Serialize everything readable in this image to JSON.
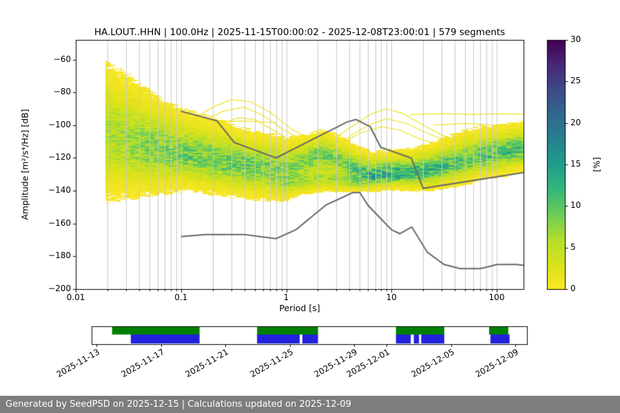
{
  "footer": {
    "text": "Generated by SeedPSD on 2025-12-15 | Calculations updated on 2025-12-09"
  },
  "chart_data": {
    "type": "heatmap",
    "title": "HA.LOUT..HHN | 100.0Hz | 2025-11-15T00:00:02 - 2025-12-08T23:00:01 | 579 segments",
    "xlabel": "Period [s]",
    "ylabel": "Amplitude [m²/s⁴/Hz] [dB]",
    "xscale": "log",
    "xlim": [
      0.01,
      180
    ],
    "ylim": [
      -200,
      -48
    ],
    "grid": "vertical-log-major-and-minor",
    "xticks": [
      {
        "label": "0.01",
        "v": 0.01
      },
      {
        "label": "0.1",
        "v": 0.1
      },
      {
        "label": "1",
        "v": 1
      },
      {
        "label": "10",
        "v": 10
      },
      {
        "label": "100",
        "v": 100
      }
    ],
    "yticks": [
      {
        "label": "−200",
        "v": -200
      },
      {
        "label": "−180",
        "v": -180
      },
      {
        "label": "−160",
        "v": -160
      },
      {
        "label": "−140",
        "v": -140
      },
      {
        "label": "−120",
        "v": -120
      },
      {
        "label": "−100",
        "v": -100
      },
      {
        "label": "−80",
        "v": -80
      },
      {
        "label": "−60",
        "v": -60
      }
    ],
    "colorbar": {
      "label": "[%]",
      "min": 0,
      "max": 30,
      "colormap": "viridis_r",
      "ticks": [
        {
          "label": "0",
          "v": 0
        },
        {
          "label": "5",
          "v": 5
        },
        {
          "label": "10",
          "v": 10
        },
        {
          "label": "15",
          "v": 15
        },
        {
          "label": "20",
          "v": 20
        },
        {
          "label": "25",
          "v": 25
        },
        {
          "label": "30",
          "v": 30
        }
      ],
      "anchors": [
        [
          0.0,
          68,
          1,
          84
        ],
        [
          0.1,
          72,
          40,
          120
        ],
        [
          0.2,
          62,
          74,
          137
        ],
        [
          0.3,
          49,
          104,
          142
        ],
        [
          0.4,
          38,
          130,
          142
        ],
        [
          0.5,
          31,
          158,
          137
        ],
        [
          0.6,
          53,
          183,
          121
        ],
        [
          0.7,
          109,
          205,
          89
        ],
        [
          0.8,
          180,
          222,
          44
        ],
        [
          0.9,
          216,
          226,
          25
        ],
        [
          1.0,
          253,
          231,
          37
        ]
      ]
    },
    "ppsd_cloud": [
      {
        "p": 0.019,
        "c": -105,
        "su": 26,
        "sd": 24,
        "pk": 6,
        "m2": -136,
        "s2": 4,
        "k2": 0
      },
      {
        "p": 0.03,
        "c": -110,
        "su": 24,
        "sd": 20,
        "pk": 7,
        "m2": -136,
        "s2": 4,
        "k2": 0
      },
      {
        "p": 0.05,
        "c": -114,
        "su": 20,
        "sd": 16,
        "pk": 8,
        "m2": -136,
        "s2": 4,
        "k2": 0
      },
      {
        "p": 0.08,
        "c": -116,
        "su": 16,
        "sd": 14,
        "pk": 9,
        "m2": -136,
        "s2": 4,
        "k2": 0
      },
      {
        "p": 0.12,
        "c": -118,
        "su": 15,
        "sd": 12,
        "pk": 9,
        "m2": -136,
        "s2": 4,
        "k2": 0
      },
      {
        "p": 0.2,
        "c": -121,
        "su": 14,
        "sd": 12,
        "pk": 9,
        "m2": -136,
        "s2": 4,
        "k2": 0
      },
      {
        "p": 0.35,
        "c": -124,
        "su": 13,
        "sd": 11,
        "pk": 9,
        "m2": -136,
        "s2": 4,
        "k2": 0
      },
      {
        "p": 0.6,
        "c": -126,
        "su": 12,
        "sd": 11,
        "pk": 9,
        "m2": -136,
        "s2": 4,
        "k2": 0
      },
      {
        "p": 1.0,
        "c": -127,
        "su": 11,
        "sd": 11,
        "pk": 8,
        "m2": -136,
        "s2": 4,
        "k2": 3
      },
      {
        "p": 1.6,
        "c": -121,
        "su": 9,
        "sd": 9,
        "pk": 8,
        "m2": -134,
        "s2": 5,
        "k2": 5
      },
      {
        "p": 2.3,
        "c": -117,
        "su": 8,
        "sd": 9,
        "pk": 9,
        "m2": -132,
        "s2": 5,
        "k2": 5
      },
      {
        "p": 3.2,
        "c": -122,
        "su": 9,
        "sd": 8,
        "pk": 8,
        "m2": -134,
        "s2": 4,
        "k2": 6
      },
      {
        "p": 4.5,
        "c": -128,
        "su": 9,
        "sd": 6,
        "pk": 10,
        "m2": -135,
        "s2": 3,
        "k2": 6
      },
      {
        "p": 6.5,
        "c": -131,
        "su": 8,
        "sd": 5,
        "pk": 13,
        "m2": -135,
        "s2": 3,
        "k2": 0
      },
      {
        "p": 10,
        "c": -130,
        "su": 8,
        "sd": 5,
        "pk": 13,
        "m2": -135,
        "s2": 3,
        "k2": 0
      },
      {
        "p": 15,
        "c": -129,
        "su": 8,
        "sd": 6,
        "pk": 12,
        "m2": -135,
        "s2": 3,
        "k2": 0
      },
      {
        "p": 25,
        "c": -127,
        "su": 9,
        "sd": 7,
        "pk": 11,
        "m2": -135,
        "s2": 3,
        "k2": 0
      },
      {
        "p": 40,
        "c": -123,
        "su": 10,
        "sd": 8,
        "pk": 10,
        "m2": -135,
        "s2": 3,
        "k2": 0
      },
      {
        "p": 70,
        "c": -119,
        "su": 10,
        "sd": 8,
        "pk": 10,
        "m2": -135,
        "s2": 3,
        "k2": 0
      },
      {
        "p": 120,
        "c": -116,
        "su": 9,
        "sd": 8,
        "pk": 11,
        "m2": -135,
        "s2": 3,
        "k2": 0
      },
      {
        "p": 180,
        "c": -114,
        "su": 9,
        "sd": 8,
        "pk": 11,
        "m2": -135,
        "s2": 3,
        "k2": 0
      }
    ],
    "extra_curves": [
      {
        "density": 1.2,
        "pts": [
          [
            0.019,
            -72
          ],
          [
            0.035,
            -80
          ],
          [
            0.06,
            -88
          ],
          [
            0.1,
            -94
          ],
          [
            0.18,
            -99
          ],
          [
            0.3,
            -103
          ]
        ]
      },
      {
        "density": 1.2,
        "pts": [
          [
            0.019,
            -76
          ],
          [
            0.04,
            -85
          ],
          [
            0.08,
            -92
          ],
          [
            0.15,
            -98
          ],
          [
            0.3,
            -103.5
          ]
        ]
      },
      {
        "density": 1.5,
        "pts": [
          [
            0.02,
            -82
          ],
          [
            0.05,
            -91
          ],
          [
            0.1,
            -98
          ],
          [
            0.2,
            -104
          ],
          [
            0.4,
            -108
          ]
        ]
      },
      {
        "density": 1.2,
        "pts": [
          [
            0.07,
            -108
          ],
          [
            0.12,
            -98
          ],
          [
            0.2,
            -89
          ],
          [
            0.3,
            -84.5
          ],
          [
            0.45,
            -85.5
          ],
          [
            0.7,
            -92
          ],
          [
            1.1,
            -102
          ],
          [
            1.8,
            -110
          ],
          [
            2.6,
            -114
          ]
        ]
      },
      {
        "density": 1.2,
        "pts": [
          [
            0.08,
            -110
          ],
          [
            0.15,
            -99
          ],
          [
            0.25,
            -91.5
          ],
          [
            0.4,
            -89
          ],
          [
            0.6,
            -94
          ],
          [
            0.9,
            -102
          ],
          [
            1.5,
            -110
          ],
          [
            2.2,
            -115
          ]
        ]
      },
      {
        "density": 1.5,
        "pts": [
          [
            0.1,
            -110
          ],
          [
            0.2,
            -101
          ],
          [
            0.35,
            -95.5
          ],
          [
            0.5,
            -96.5
          ],
          [
            0.8,
            -104
          ],
          [
            1.3,
            -112
          ]
        ]
      },
      {
        "density": 1.3,
        "pts": [
          [
            0.1,
            -97
          ],
          [
            0.2,
            -98
          ],
          [
            0.4,
            -97.5
          ],
          [
            0.8,
            -98.5
          ]
        ]
      },
      {
        "density": 1.3,
        "pts": [
          [
            2.2,
            -114
          ],
          [
            3.2,
            -106
          ],
          [
            4.5,
            -99.5
          ],
          [
            6.5,
            -93
          ],
          [
            9,
            -90
          ],
          [
            13,
            -93
          ],
          [
            20,
            -100
          ],
          [
            30,
            -106
          ],
          [
            45,
            -110
          ]
        ]
      },
      {
        "density": 1.3,
        "pts": [
          [
            2.5,
            -116
          ],
          [
            4,
            -107
          ],
          [
            6,
            -100
          ],
          [
            9,
            -96
          ],
          [
            14,
            -99
          ],
          [
            22,
            -105
          ],
          [
            35,
            -110
          ]
        ]
      },
      {
        "density": 1.2,
        "pts": [
          [
            3,
            -113
          ],
          [
            5,
            -105
          ],
          [
            8,
            -101
          ],
          [
            12,
            -103
          ],
          [
            18,
            -108
          ],
          [
            28,
            -112
          ]
        ]
      },
      {
        "density": 1.2,
        "pts": [
          [
            15,
            -93.5
          ],
          [
            30,
            -93
          ],
          [
            60,
            -93.5
          ],
          [
            120,
            -93
          ],
          [
            180,
            -93.5
          ]
        ]
      },
      {
        "density": 1.3,
        "pts": [
          [
            25,
            -100
          ],
          [
            50,
            -99
          ],
          [
            100,
            -100
          ],
          [
            180,
            -99.5
          ]
        ]
      },
      {
        "density": 1.3,
        "pts": [
          [
            40,
            -105
          ],
          [
            80,
            -104
          ],
          [
            150,
            -105
          ],
          [
            180,
            -104.5
          ]
        ]
      },
      {
        "density": 1.4,
        "pts": [
          [
            60,
            -107.5
          ],
          [
            120,
            -106.5
          ],
          [
            180,
            -107
          ]
        ]
      }
    ],
    "noise_models": {
      "color": "#666666",
      "high": [
        [
          0.1,
          -91.5
        ],
        [
          0.22,
          -97.4
        ],
        [
          0.32,
          -110.5
        ],
        [
          0.8,
          -120.0
        ],
        [
          3.8,
          -98.0
        ],
        [
          4.6,
          -96.5
        ],
        [
          6.3,
          -101.0
        ],
        [
          7.9,
          -113.5
        ],
        [
          15.4,
          -120.0
        ],
        [
          20.0,
          -138.5
        ],
        [
          180.0,
          -128.9
        ]
      ],
      "low": [
        [
          0.1,
          -168.0
        ],
        [
          0.17,
          -166.7
        ],
        [
          0.4,
          -166.7
        ],
        [
          0.8,
          -169.2
        ],
        [
          1.24,
          -163.7
        ],
        [
          2.4,
          -148.6
        ],
        [
          4.3,
          -141.1
        ],
        [
          5.0,
          -141.1
        ],
        [
          6.0,
          -149.0
        ],
        [
          10.0,
          -163.8
        ],
        [
          12.0,
          -166.2
        ],
        [
          15.6,
          -162.1
        ],
        [
          21.9,
          -177.5
        ],
        [
          31.6,
          -185.0
        ],
        [
          45.0,
          -187.5
        ],
        [
          70.0,
          -187.5
        ],
        [
          101.0,
          -185.0
        ],
        [
          154.0,
          -185.0
        ],
        [
          180.0,
          -185.5
        ]
      ]
    }
  },
  "availability": {
    "green_color": "#008000",
    "blue_color": "#2222dd",
    "green_segments": [
      [
        0.047,
        0.248
      ],
      [
        0.38,
        0.52
      ],
      [
        0.699,
        0.81
      ],
      [
        0.913,
        0.957
      ]
    ],
    "blue_segments": [
      [
        0.09,
        0.248
      ],
      [
        0.38,
        0.478
      ],
      [
        0.484,
        0.52
      ],
      [
        0.699,
        0.733
      ],
      [
        0.74,
        0.752
      ],
      [
        0.757,
        0.81
      ],
      [
        0.916,
        0.96
      ]
    ],
    "ticks": [
      {
        "label": "2025-11-13",
        "f": 0.011
      },
      {
        "label": "2025-11-17",
        "f": 0.16
      },
      {
        "label": "2025-11-21",
        "f": 0.307
      },
      {
        "label": "2025-11-25",
        "f": 0.456
      },
      {
        "label": "2025-11-29",
        "f": 0.603
      },
      {
        "label": "2025-12-01",
        "f": 0.677
      },
      {
        "label": "2025-12-05",
        "f": 0.826
      },
      {
        "label": "2025-12-09",
        "f": 0.973
      }
    ]
  }
}
